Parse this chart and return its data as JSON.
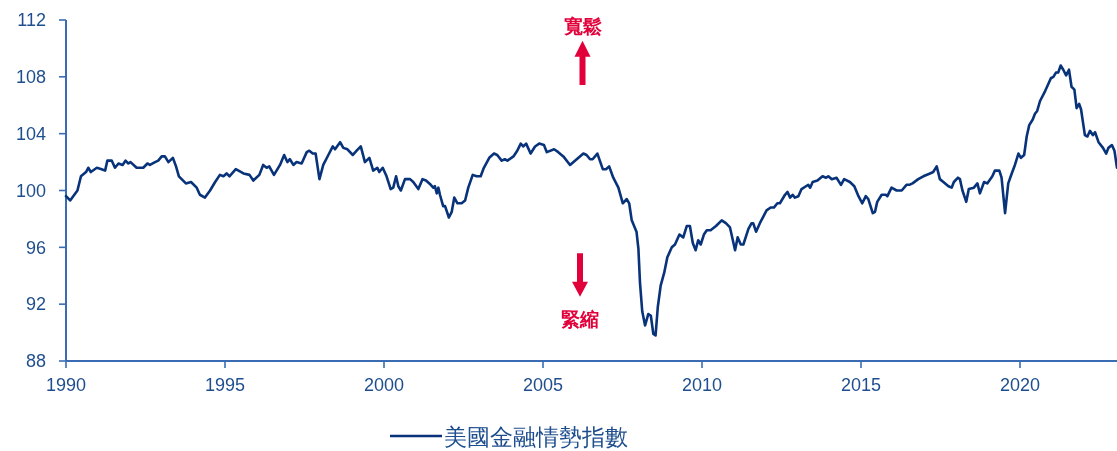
{
  "chart_data": {
    "type": "line",
    "series": [
      {
        "name": "美國金融情勢指數",
        "color": "#08337a",
        "x": [
          1990.0,
          1990.13,
          1990.36,
          1990.47,
          1990.63,
          1990.7,
          1990.78,
          1990.97,
          1991.12,
          1991.23,
          1991.3,
          1991.44,
          1991.54,
          1991.65,
          1991.78,
          1991.87,
          1991.96,
          1992.03,
          1992.22,
          1992.43,
          1992.56,
          1992.64,
          1992.8,
          1992.9,
          1993.01,
          1993.11,
          1993.22,
          1993.36,
          1993.46,
          1993.55,
          1993.77,
          1993.93,
          1994.11,
          1994.21,
          1994.37,
          1994.53,
          1994.69,
          1994.84,
          1994.95,
          1995.05,
          1995.14,
          1995.34,
          1995.58,
          1995.77,
          1995.89,
          1996.08,
          1996.2,
          1996.31,
          1996.39,
          1996.54,
          1996.73,
          1996.86,
          1996.96,
          1997.04,
          1997.15,
          1997.25,
          1997.41,
          1997.57,
          1997.65,
          1997.76,
          1997.85,
          1997.97,
          1998.09,
          1998.25,
          1998.39,
          1998.46,
          1998.62,
          1998.72,
          1998.85,
          1999.02,
          1999.14,
          1999.27,
          1999.4,
          1999.54,
          1999.66,
          1999.79,
          1999.85,
          1999.96,
          2000.08,
          2000.21,
          2000.29,
          2000.38,
          2000.45,
          2000.53,
          2000.66,
          2000.82,
          2000.92,
          2001.08,
          2001.21,
          2001.32,
          2001.47,
          2001.55,
          2001.6,
          2001.66,
          2001.71,
          2001.76,
          2001.86,
          2001.92,
          2002.04,
          2002.13,
          2002.21,
          2002.31,
          2002.44,
          2002.55,
          2002.65,
          2002.79,
          2002.91,
          2003.04,
          2003.14,
          2003.31,
          2003.46,
          2003.56,
          2003.7,
          2003.8,
          2003.88,
          2004.07,
          2004.19,
          2004.3,
          2004.38,
          2004.47,
          2004.61,
          2004.75,
          2004.88,
          2005.03,
          2005.12,
          2005.35,
          2005.48,
          2005.64,
          2005.85,
          2006.06,
          2006.27,
          2006.37,
          2006.48,
          2006.56,
          2006.71,
          2006.88,
          2006.98,
          2007.08,
          2007.21,
          2007.37,
          2007.51,
          2007.63,
          2007.71,
          2007.79,
          2007.94,
          2008.0,
          2008.05,
          2008.12,
          2008.21,
          2008.31,
          2008.39,
          2008.47,
          2008.54,
          2008.61,
          2008.7,
          2008.81,
          2008.91,
          2009.05,
          2009.15,
          2009.29,
          2009.41,
          2009.52,
          2009.62,
          2009.71,
          2009.8,
          2009.88,
          2009.96,
          2010.06,
          2010.15,
          2010.27,
          2010.44,
          2010.62,
          2010.75,
          2010.88,
          2011.04,
          2011.12,
          2011.22,
          2011.3,
          2011.46,
          2011.56,
          2011.61,
          2011.7,
          2011.82,
          2012.03,
          2012.16,
          2012.26,
          2012.37,
          2012.45,
          2012.61,
          2012.69,
          2012.77,
          2012.85,
          2012.92,
          2013.03,
          2013.13,
          2013.27,
          2013.34,
          2013.4,
          2013.48,
          2013.63,
          2013.79,
          2013.9,
          2013.97,
          2014.08,
          2014.23,
          2014.37,
          2014.47,
          2014.65,
          2014.79,
          2014.92,
          2015.04,
          2015.15,
          2015.23,
          2015.37,
          2015.44,
          2015.51,
          2015.65,
          2015.78,
          2015.83,
          2015.96,
          2016.12,
          2016.28,
          2016.43,
          2016.52,
          2016.62,
          2016.8,
          2016.96,
          2017.17,
          2017.27,
          2017.38,
          2017.48,
          2017.59,
          2017.75,
          2017.85,
          2017.92,
          2018.05,
          2018.11,
          2018.19,
          2018.31,
          2018.39,
          2018.55,
          2018.66,
          2018.74,
          2018.87,
          2018.97,
          2019.13,
          2019.21,
          2019.35,
          2019.42,
          2019.53,
          2019.63,
          2019.74,
          2019.84,
          2019.95,
          2020.03,
          2020.13,
          2020.21,
          2020.29,
          2020.4,
          2020.47,
          2020.54,
          2020.63,
          2020.79,
          2020.89,
          2020.97,
          2021.05,
          2021.13,
          2021.2,
          2021.28,
          2021.36,
          2021.45,
          2021.54,
          2021.62,
          2021.71,
          2021.78,
          2021.86,
          2021.92,
          2022.04,
          2022.12,
          2022.2,
          2022.29,
          2022.36,
          2022.47,
          2022.61,
          2022.71,
          2022.78,
          2022.89,
          2022.97,
          2023.05
        ],
        "values": [
          99.6,
          99.3,
          100.0,
          101.0,
          101.3,
          101.6,
          101.3,
          101.6,
          101.5,
          101.4,
          102.1,
          102.1,
          101.6,
          101.9,
          101.8,
          102.1,
          101.9,
          102.0,
          101.6,
          101.6,
          101.9,
          101.8,
          102.0,
          102.1,
          102.4,
          102.4,
          102.0,
          102.3,
          101.7,
          101.0,
          100.5,
          100.6,
          100.2,
          99.7,
          99.5,
          100.0,
          100.6,
          101.1,
          101.0,
          101.2,
          101.0,
          101.5,
          101.2,
          101.1,
          100.7,
          101.1,
          101.8,
          101.6,
          101.7,
          101.1,
          101.8,
          102.5,
          102.0,
          102.2,
          101.8,
          102.0,
          101.9,
          102.7,
          102.8,
          102.6,
          102.6,
          100.8,
          101.8,
          102.5,
          103.1,
          102.9,
          103.4,
          103.0,
          102.9,
          102.5,
          102.8,
          103.1,
          102.0,
          102.3,
          101.4,
          101.6,
          101.3,
          101.6,
          101.0,
          100.1,
          100.2,
          101.0,
          100.3,
          100.0,
          100.8,
          100.8,
          100.6,
          100.1,
          100.8,
          100.7,
          100.4,
          100.2,
          100.3,
          99.8,
          100.2,
          99.7,
          98.9,
          98.9,
          98.1,
          98.5,
          99.5,
          99.1,
          99.1,
          99.3,
          100.2,
          101.1,
          101.0,
          101.0,
          101.6,
          102.3,
          102.6,
          102.5,
          102.1,
          102.2,
          102.1,
          102.4,
          102.8,
          103.3,
          103.1,
          103.3,
          102.6,
          103.1,
          103.3,
          103.2,
          102.7,
          102.9,
          102.7,
          102.4,
          101.8,
          102.2,
          102.6,
          102.5,
          102.2,
          102.2,
          102.6,
          101.5,
          101.5,
          101.7,
          100.9,
          100.2,
          99.1,
          99.4,
          99.1,
          97.9,
          97.1,
          95.9,
          93.5,
          91.5,
          90.5,
          91.3,
          91.2,
          89.9,
          89.8,
          91.8,
          93.3,
          94.2,
          95.3,
          96.0,
          96.2,
          96.9,
          96.7,
          97.5,
          97.5,
          96.3,
          95.8,
          96.5,
          96.2,
          96.9,
          97.2,
          97.2,
          97.5,
          97.9,
          97.7,
          97.4,
          95.8,
          96.7,
          96.2,
          96.2,
          97.3,
          97.7,
          97.7,
          97.1,
          97.7,
          98.6,
          98.8,
          98.8,
          99.1,
          99.1,
          99.7,
          99.9,
          99.5,
          99.7,
          99.5,
          99.6,
          100.1,
          100.3,
          100.4,
          100.2,
          100.6,
          100.7,
          101.0,
          100.9,
          101.0,
          100.8,
          100.9,
          100.4,
          100.8,
          100.6,
          100.3,
          99.6,
          99.1,
          99.6,
          99.4,
          98.4,
          98.5,
          99.2,
          99.7,
          99.7,
          99.6,
          100.2,
          100.0,
          100.0,
          100.4,
          100.4,
          100.5,
          100.8,
          101.0,
          101.2,
          101.3,
          101.7,
          100.8,
          100.6,
          100.3,
          100.2,
          100.6,
          100.9,
          100.8,
          100.0,
          99.2,
          100.1,
          100.2,
          100.5,
          99.8,
          100.6,
          100.5,
          101.0,
          101.4,
          101.4,
          100.9,
          98.4,
          100.5,
          101.2,
          101.8,
          102.6,
          102.3,
          102.5,
          103.8,
          104.6,
          105.0,
          105.4,
          105.6,
          106.3,
          107.0,
          107.5,
          107.9,
          108.0,
          108.3,
          108.3,
          108.8,
          108.5,
          108.1,
          108.5,
          107.3,
          107.1,
          105.8,
          106.1,
          105.7,
          103.9,
          103.8,
          104.2,
          103.9,
          104.1,
          103.4,
          103.0,
          102.6,
          103.0,
          103.2,
          102.8,
          101.6
        ]
      }
    ],
    "xlim": [
      1990,
      2023.05
    ],
    "xticks": [
      1990,
      1995,
      2000,
      2005,
      2010,
      2015,
      2020
    ],
    "ylim": [
      88,
      112
    ],
    "yticks": [
      88,
      92,
      96,
      100,
      104,
      108,
      112
    ],
    "annotations": [
      "寬鬆",
      "緊縮"
    ],
    "legend": "bottom"
  }
}
